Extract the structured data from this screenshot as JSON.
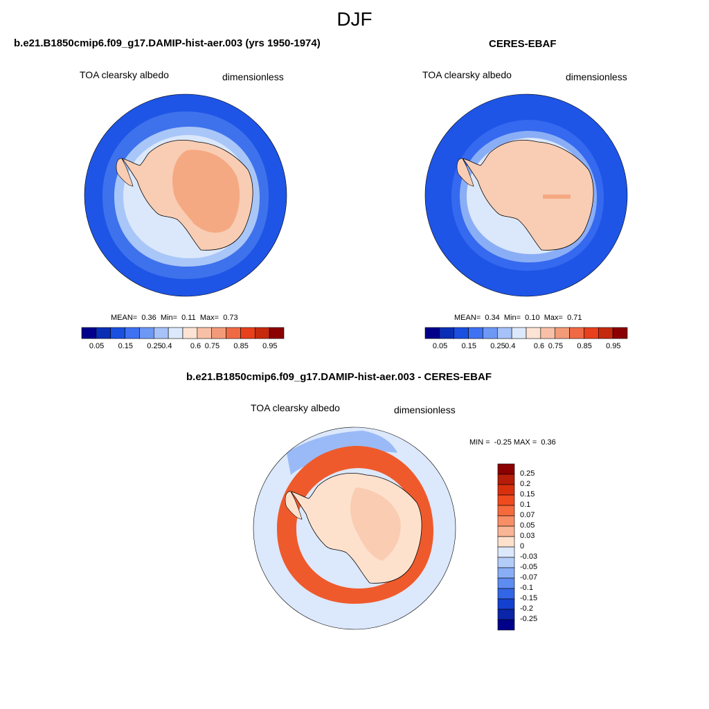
{
  "page": {
    "title": "DJF"
  },
  "panels": [
    {
      "title": "b.e21.B1850cmip6.f09_g17.DAMIP-hist-aer.003 (yrs 1950-1974)",
      "left_label": "TOA clearsky albedo",
      "right_label": "dimensionless",
      "stats": {
        "mean_label": "MEAN=",
        "mean": "0.36",
        "min_label": "Min=",
        "min": "0.11",
        "max_label": "Max=",
        "max": "0.73"
      }
    },
    {
      "title": "CERES-EBAF",
      "left_label": "TOA clearsky albedo",
      "right_label": "dimensionless",
      "stats": {
        "mean_label": "MEAN=",
        "mean": "0.34",
        "min_label": "Min=",
        "min": "0.10",
        "max_label": "Max=",
        "max": "0.71"
      }
    },
    {
      "title": "b.e21.B1850cmip6.f09_g17.DAMIP-hist-aer.003 - CERES-EBAF",
      "left_label": "TOA clearsky albedo",
      "right_label": "dimensionless",
      "stats": {
        "min_label": "MIN =",
        "min": "-0.25",
        "max_label": "MAX =",
        "max": "0.36"
      }
    }
  ],
  "colorbars": {
    "abs": {
      "labels": [
        "0.05",
        "0.15",
        "0.25",
        "0.4",
        "0.6",
        "0.75",
        "0.85",
        "0.95"
      ],
      "colors": [
        "#00008b",
        "#0a2fb4",
        "#1a4fe0",
        "#3f72f2",
        "#6e98f5",
        "#a6c2f8",
        "#dce8fb",
        "#fde3d3",
        "#f8c0a6",
        "#f39b78",
        "#ef6a44",
        "#e8401c",
        "#c52a0f",
        "#8b0000"
      ]
    },
    "diff": {
      "labels": [
        "0.25",
        "0.2",
        "0.15",
        "0.1",
        "0.07",
        "0.05",
        "0.03",
        "0",
        "-0.03",
        "-0.05",
        "-0.07",
        "-0.1",
        "-0.15",
        "-0.2",
        "-0.25"
      ],
      "colors": [
        "#8b0000",
        "#b51d08",
        "#d8300d",
        "#f04b1e",
        "#f56a3c",
        "#f88e65",
        "#f9b596",
        "#fde1cd",
        "#dce8fb",
        "#b3cdf9",
        "#8aaef6",
        "#5f8cf1",
        "#3366e6",
        "#1440cf",
        "#0b25a8",
        "#00008b"
      ]
    }
  },
  "map_colors": {
    "ocean_deep": "#1e55e6",
    "ocean_mid": "#4679ee",
    "ice_light": "#a9c6f8",
    "ice_pale": "#dbe8fb",
    "land_low": "#f8cdb4",
    "land_high": "#f5a982",
    "diff_neutral": "#dce8fb",
    "diff_pos": "#ef5a2c",
    "diff_posweak": "#f9c7ab"
  }
}
